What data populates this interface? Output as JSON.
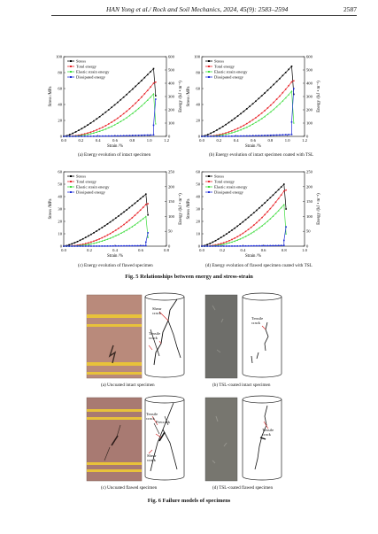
{
  "header": {
    "title": "HAN Yong et al./ Rock and Soil Mechanics, 2024, 45(9): 2583–2594",
    "page": "2587"
  },
  "legend": [
    "Stress",
    "Total energy",
    "Elastic strain energy",
    "Dissipated energy"
  ],
  "colors": {
    "stress": "#000000",
    "total": "#e8262b",
    "elastic": "#3fdc3f",
    "dissipated": "#1f2fd8"
  },
  "axis_labels": {
    "x": "Strain /%",
    "y": "Stress /MPa",
    "y2": "Energy /(kJ • m⁻³)"
  },
  "chart_data": [
    {
      "type": "line",
      "caption": "(a) Energy evolution of intact specimen",
      "xlim": [
        0,
        1.2
      ],
      "xticks": [
        "0.0",
        "0.2",
        "0.4",
        "0.6",
        "0.8",
        "1.0",
        "1.2"
      ],
      "ylim": [
        0,
        100
      ],
      "yticks": [
        "0",
        "20",
        "40",
        "60",
        "80",
        "100"
      ],
      "y2lim": [
        0,
        600
      ],
      "y2ticks": [
        "0",
        "100",
        "200",
        "300",
        "400",
        "500",
        "600"
      ],
      "peak_strain": 1.05,
      "peak_stress": 85,
      "peak_total": 400,
      "peak_elastic": 320,
      "final_dissipated": 280
    },
    {
      "type": "line",
      "caption": "(b) Energy evolution of intact specimen coated with TSL",
      "xlim": [
        0,
        1.2
      ],
      "xticks": [
        "0.0",
        "0.2",
        "0.4",
        "0.6",
        "0.8",
        "1.0",
        "1.2"
      ],
      "ylim": [
        0,
        100
      ],
      "yticks": [
        "0",
        "20",
        "40",
        "60",
        "80",
        "100"
      ],
      "y2lim": [
        0,
        600
      ],
      "y2ticks": [
        "0",
        "100",
        "200",
        "300",
        "400",
        "500",
        "600"
      ],
      "peak_strain": 1.05,
      "peak_stress": 88,
      "peak_total": 410,
      "peak_elastic": 340,
      "final_dissipated": 360
    },
    {
      "type": "line",
      "caption": "(c) Energy evolution of flawed specimen",
      "xlim": [
        0,
        0.8
      ],
      "xticks": [
        "0.0",
        "0.2",
        "0.4",
        "0.6",
        "0.8"
      ],
      "ylim": [
        0,
        60
      ],
      "yticks": [
        "0",
        "10",
        "20",
        "30",
        "40",
        "50",
        "60"
      ],
      "y2lim": [
        0,
        250
      ],
      "y2ticks": [
        "0",
        "50",
        "100",
        "150",
        "200",
        "250"
      ],
      "peak_strain": 0.64,
      "peak_stress": 42,
      "peak_total": 140,
      "peak_elastic": 100,
      "final_dissipated": 45
    },
    {
      "type": "line",
      "caption": "(d) Energy evolution of flawed specimen coated with TSL",
      "xlim": [
        0,
        1.0
      ],
      "xticks": [
        "0.0",
        "0.2",
        "0.4",
        "0.6",
        "0.8",
        "1.0"
      ],
      "ylim": [
        0,
        60
      ],
      "yticks": [
        "0",
        "10",
        "20",
        "30",
        "40",
        "50",
        "60"
      ],
      "y2lim": [
        0,
        250
      ],
      "y2ticks": [
        "0",
        "50",
        "100",
        "150",
        "200",
        "250"
      ],
      "peak_strain": 0.8,
      "peak_stress": 50,
      "peak_total": 185,
      "peak_elastic": 140,
      "final_dissipated": 65
    }
  ],
  "fig5_caption": "Fig. 5   Relationships between energy and stress-strain",
  "failure": {
    "a": {
      "caption": "(a) Uncoated intact specimen",
      "labels": [
        "Shear crack",
        "Tensile crack"
      ]
    },
    "b": {
      "caption": "(b) TSL-coated intact specimen",
      "labels": [
        "Tensile crack"
      ]
    },
    "c": {
      "caption": "(c) Uncoated flawed specimen",
      "labels": [
        "Tensile crack",
        "Precrack",
        "Shear crack"
      ]
    },
    "d": {
      "caption": "(d) TSL-coated flawed specimen",
      "labels": [
        "Tensile crack"
      ]
    }
  },
  "fig6_caption": "Fig. 6   Failure models of specimens"
}
